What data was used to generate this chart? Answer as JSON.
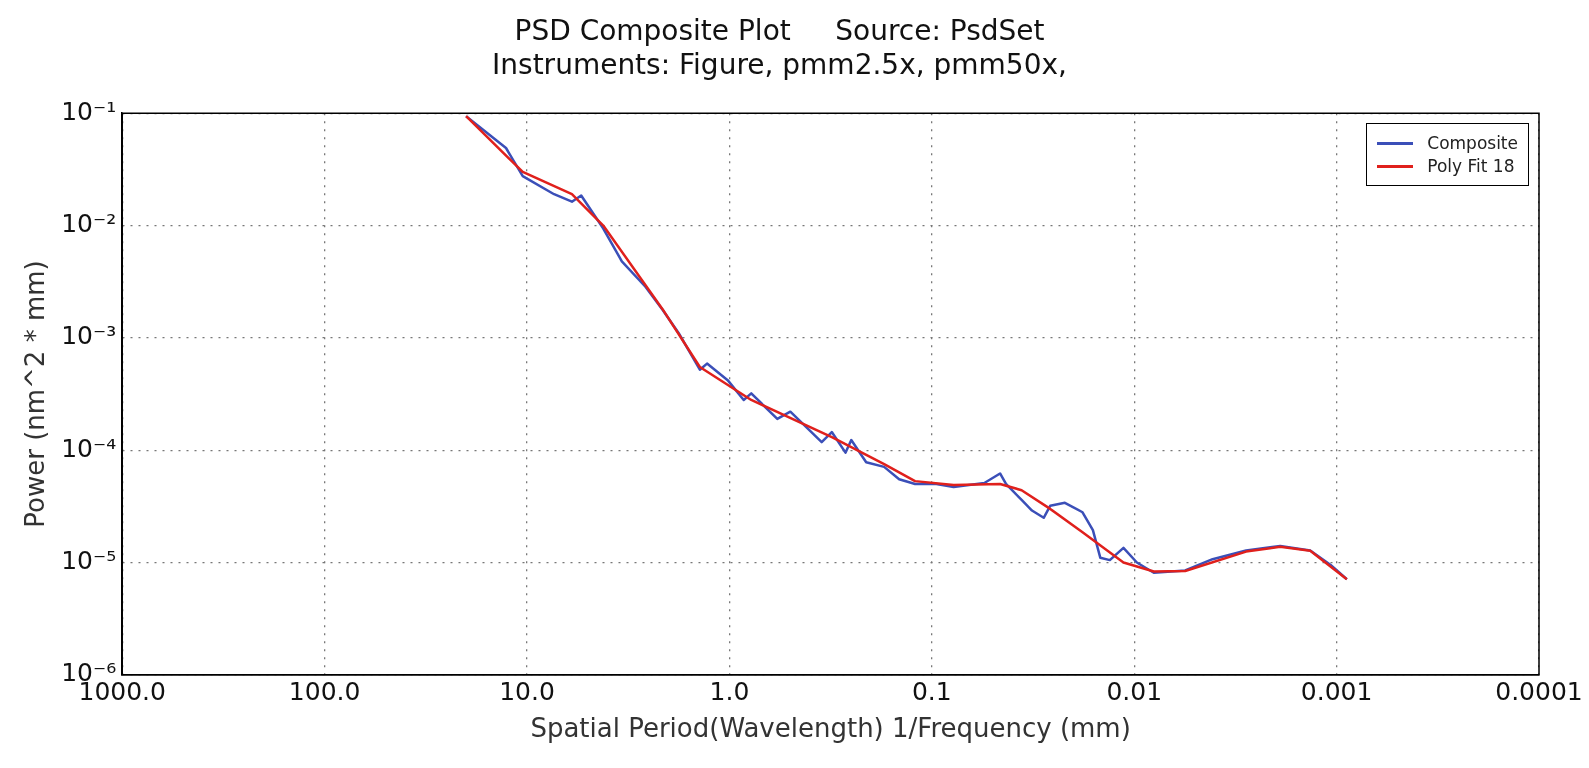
{
  "chart_data": {
    "type": "line",
    "title": "PSD Composite Plot     Source: PsdSet",
    "subtitle": "Instruments: Figure, pmm2.5x, pmm50x,",
    "xlabel": "Spatial Period(Wavelength) 1/Frequency (mm)",
    "ylabel": "Power (nm^2 * mm)",
    "log": "xy",
    "grid": true,
    "legend": "top right",
    "marker": "none",
    "line_style": "solid",
    "xlim": [
      1000,
      0.0001
    ],
    "xticks": [
      {
        "value": 1000,
        "label": "1000.0"
      },
      {
        "value": 100,
        "label": "100.0"
      },
      {
        "value": 10,
        "label": "10.0"
      },
      {
        "value": 1,
        "label": "1.0"
      },
      {
        "value": 0.1,
        "label": "0.1"
      },
      {
        "value": 0.01,
        "label": "0.01"
      },
      {
        "value": 0.001,
        "label": "0.001"
      },
      {
        "value": 0.0001,
        "label": "0.0001"
      }
    ],
    "ylim": [
      1e-06,
      0.1
    ],
    "yticks": [
      {
        "value": 1e-06,
        "label": "10⁻⁶"
      },
      {
        "value": 1e-05,
        "label": "10⁻⁵"
      },
      {
        "value": 0.0001,
        "label": "10⁻⁴"
      },
      {
        "value": 0.001,
        "label": "10⁻³"
      },
      {
        "value": 0.01,
        "label": "10⁻²"
      },
      {
        "value": 0.1,
        "label": "10⁻¹"
      }
    ],
    "series": [
      {
        "name": "Composite",
        "color": "#3b4fb8",
        "x": [
          20,
          12.7,
          10.5,
          7.35,
          6.0,
          5.4,
          4.2,
          3.4,
          2.6,
          2.14,
          1.78,
          1.4,
          1.29,
          1.02,
          0.85,
          0.78,
          0.58,
          0.5,
          0.35,
          0.312,
          0.267,
          0.25,
          0.211,
          0.172,
          0.145,
          0.121,
          0.095,
          0.078,
          0.055,
          0.046,
          0.043,
          0.036,
          0.032,
          0.028,
          0.026,
          0.022,
          0.018,
          0.016,
          0.0147,
          0.0132,
          0.0113,
          0.0097,
          0.008,
          0.0056,
          0.0041,
          0.0028,
          0.0019,
          0.00135,
          0.00107,
          0.00089
        ],
        "values": [
          0.094,
          0.049,
          0.0275,
          0.019,
          0.0163,
          0.0185,
          0.0094,
          0.0048,
          0.00285,
          0.00178,
          0.0011,
          0.00052,
          0.00059,
          0.00042,
          0.00028,
          0.00032,
          0.00019,
          0.00022,
          0.000118,
          0.000145,
          9.5e-05,
          0.000123,
          7.8e-05,
          7.1e-05,
          5.5e-05,
          5e-05,
          5e-05,
          4.7e-05,
          5.1e-05,
          6.2e-05,
          5e-05,
          3.6e-05,
          2.9e-05,
          2.5e-05,
          3.2e-05,
          3.4e-05,
          2.8e-05,
          1.94e-05,
          1.1e-05,
          1.05e-05,
          1.35e-05,
          1e-05,
          8.1e-06,
          8.5e-06,
          1.07e-05,
          1.28e-05,
          1.4e-05,
          1.28e-05,
          9.5e-06,
          7.1e-06
        ]
      },
      {
        "name": "Poly Fit 18",
        "color": "#e0201c",
        "x": [
          20,
          10.5,
          6,
          4.2,
          2.14,
          1.4,
          0.78,
          0.31,
          0.172,
          0.121,
          0.078,
          0.046,
          0.036,
          0.026,
          0.018,
          0.0113,
          0.008,
          0.0056,
          0.0028,
          0.0019,
          0.00135,
          0.00089
        ],
        "values": [
          0.094,
          0.03,
          0.019,
          0.01,
          0.0018,
          0.00055,
          0.00028,
          0.00013,
          7.5e-05,
          5.3e-05,
          4.9e-05,
          5e-05,
          4.4e-05,
          3e-05,
          1.86e-05,
          1e-05,
          8.3e-06,
          8.4e-06,
          1.25e-05,
          1.38e-05,
          1.27e-05,
          7.1e-06
        ]
      }
    ]
  }
}
